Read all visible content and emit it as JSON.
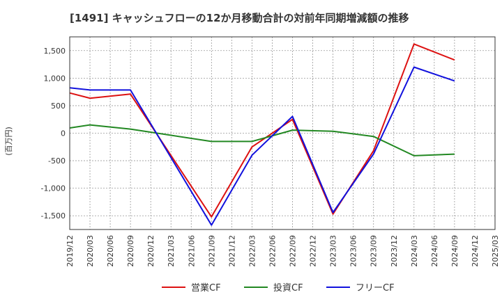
{
  "chart_data": {
    "type": "line",
    "title": "[1491]  キャッシュフローの12か月移動合計の対前年同期増減額の推移",
    "ylabel": "(百万円)",
    "xlabel": "",
    "ylim": [
      -1750,
      1750
    ],
    "yticks": [
      1500,
      1000,
      500,
      0,
      -500,
      -1000,
      -1500
    ],
    "ytick_labels": [
      "1,500",
      "1,000",
      "500",
      "0",
      "-500",
      "-1,000",
      "-1,500"
    ],
    "x": [
      "2019/12",
      "2020/03",
      "2020/06",
      "2020/09",
      "2020/12",
      "2021/03",
      "2021/06",
      "2021/09",
      "2021/12",
      "2022/03",
      "2022/06",
      "2022/09",
      "2022/12",
      "2023/03",
      "2023/06",
      "2023/09",
      "2023/12",
      "2024/03",
      "2024/06",
      "2024/09",
      "2024/12",
      "2025/03"
    ],
    "grid": true,
    "legend_position": "bottom",
    "series": [
      {
        "name": "営業CF",
        "color": "#dd1111",
        "values": [
          730,
          635,
          null,
          710,
          null,
          null,
          null,
          -1520,
          null,
          -250,
          null,
          250,
          null,
          -1470,
          null,
          -320,
          null,
          1620,
          null,
          1330,
          null,
          null
        ]
      },
      {
        "name": "投資CF",
        "color": "#228822",
        "values": [
          95,
          150,
          null,
          75,
          null,
          null,
          null,
          -150,
          null,
          -150,
          null,
          55,
          null,
          35,
          null,
          -60,
          null,
          -410,
          null,
          -380,
          null,
          null
        ]
      },
      {
        "name": "フリーCF",
        "color": "#1111dd",
        "values": [
          825,
          785,
          null,
          785,
          null,
          null,
          null,
          -1670,
          null,
          -400,
          null,
          305,
          null,
          -1440,
          null,
          -380,
          null,
          1200,
          null,
          950,
          null,
          null
        ]
      }
    ]
  }
}
